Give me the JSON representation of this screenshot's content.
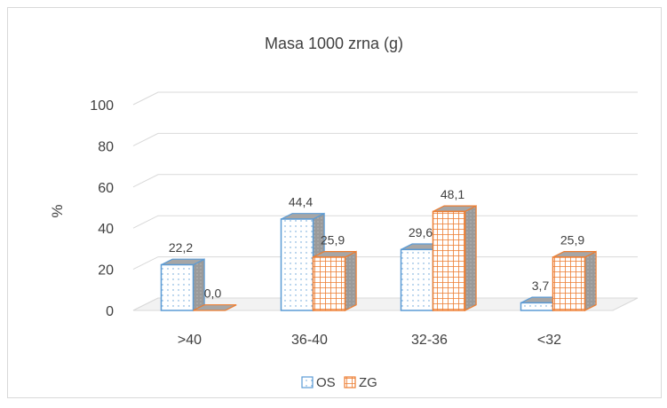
{
  "chart_data": {
    "type": "bar",
    "title": "Masa 1000 zrna (g)",
    "xlabel": "",
    "ylabel": "%",
    "ylim": [
      0,
      100
    ],
    "yticks": [
      0,
      20,
      40,
      60,
      80,
      100
    ],
    "categories": [
      ">40",
      "36-40",
      "32-36",
      "<32"
    ],
    "series": [
      {
        "name": "OS",
        "values": [
          22.2,
          44.4,
          29.6,
          3.7
        ],
        "labels": [
          "22,2",
          "44,4",
          "29,6",
          "3,7"
        ],
        "color": "#5b9bd5",
        "pattern": "dots"
      },
      {
        "name": "ZG",
        "values": [
          0.0,
          25.9,
          48.1,
          25.9
        ],
        "labels": [
          "0,0",
          "25,9",
          "48,1",
          "25,9"
        ],
        "color": "#ed7d31",
        "pattern": "grid"
      }
    ],
    "grid": true,
    "legend": "bottom",
    "style": "3d-column"
  }
}
